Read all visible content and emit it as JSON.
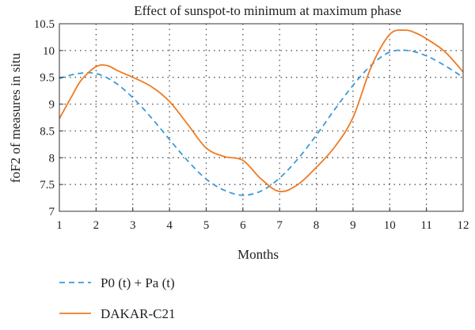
{
  "chart_data": {
    "type": "line",
    "title": "Effect of sunspot-to minimum at maximum phase",
    "xlabel": "Months",
    "ylabel": "foF2 of measures in situ",
    "xlim": [
      1,
      12
    ],
    "ylim": [
      7,
      10.5
    ],
    "x_ticks": [
      1,
      2,
      3,
      4,
      5,
      6,
      7,
      8,
      9,
      10,
      11,
      12
    ],
    "y_ticks": [
      7,
      7.5,
      8,
      8.5,
      9,
      9.5,
      10,
      10.5
    ],
    "grid": true,
    "legend_position": "bottom",
    "series": [
      {
        "name": "P0 (t) + Pa (t)",
        "color": "#3a9ad9",
        "style": "dashed",
        "x": [
          1,
          1.5,
          2,
          2.5,
          3,
          3.5,
          4,
          4.5,
          5,
          5.5,
          6,
          6.5,
          7,
          7.5,
          8,
          8.5,
          9,
          9.5,
          10,
          10.5,
          11,
          11.5,
          12
        ],
        "y": [
          9.48,
          9.57,
          9.57,
          9.41,
          9.12,
          8.75,
          8.34,
          7.94,
          7.6,
          7.39,
          7.3,
          7.38,
          7.62,
          7.98,
          8.42,
          8.9,
          9.35,
          9.73,
          9.97,
          10.0,
          9.9,
          9.72,
          9.5
        ]
      },
      {
        "name": "DAKAR-C21",
        "color": "#f07a22",
        "style": "solid",
        "x": [
          1,
          1.3,
          1.6,
          2,
          2.3,
          2.6,
          3,
          3.5,
          4,
          4.5,
          5,
          5.5,
          6,
          6.5,
          7,
          7.5,
          8,
          8.5,
          9,
          9.5,
          10,
          10.4,
          10.7,
          11,
          11.5,
          12
        ],
        "y": [
          8.73,
          9.1,
          9.45,
          9.7,
          9.72,
          9.62,
          9.5,
          9.33,
          9.05,
          8.62,
          8.18,
          8.02,
          7.95,
          7.6,
          7.37,
          7.5,
          7.82,
          8.2,
          8.75,
          9.7,
          10.3,
          10.38,
          10.33,
          10.22,
          9.98,
          9.6
        ]
      }
    ]
  }
}
